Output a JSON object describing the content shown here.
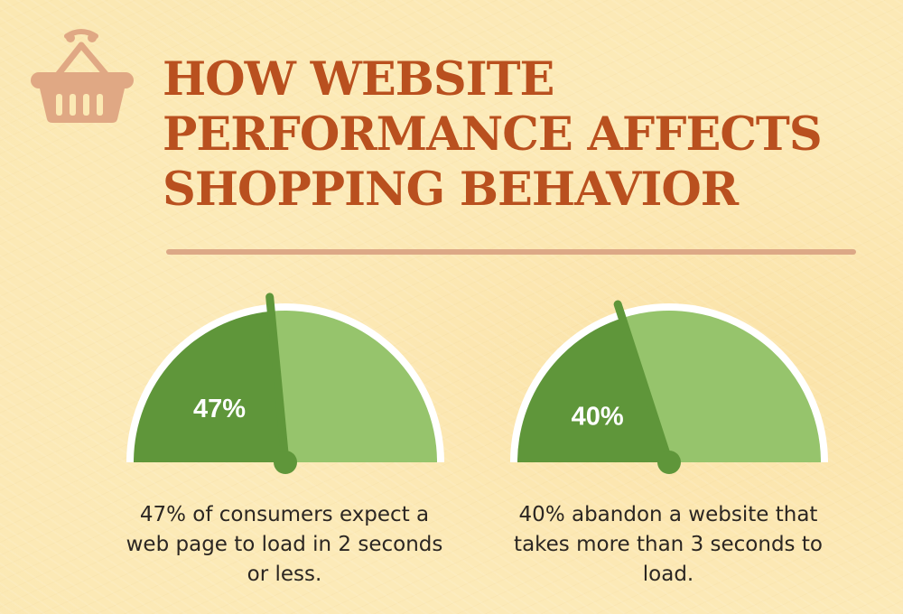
{
  "title_lines": [
    "HOW WEBSITE",
    "PERFORMANCE AFFECTS",
    "SHOPPING BEHAVIOR"
  ],
  "icons": {
    "header": "shopping-basket-icon"
  },
  "colors": {
    "title": "#b9501f",
    "gauge_filled": "#5f963a",
    "gauge_remaining": "#96c46c",
    "gauge_outline": "#ffffff",
    "needle": "#5f963a",
    "basket": "#e0a884",
    "divider": "#dca886",
    "background": "#fbe9b4"
  },
  "chart_data": [
    {
      "type": "gauge",
      "value": 47,
      "max": 100,
      "label": "47%",
      "caption": "47% of consumers expect a web page to load in 2 seconds or less."
    },
    {
      "type": "gauge",
      "value": 40,
      "max": 100,
      "label": "40%",
      "caption": "40% abandon a website that takes more than 3 seconds to load."
    }
  ]
}
